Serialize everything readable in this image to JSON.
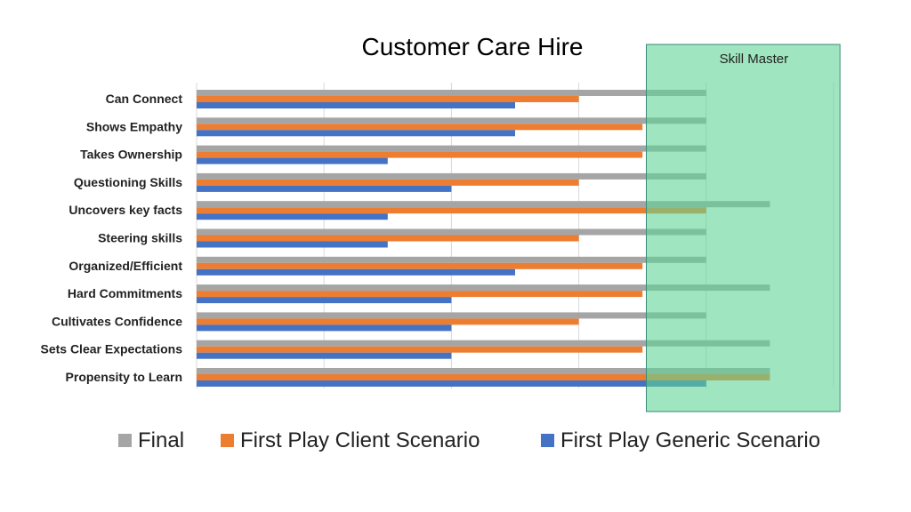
{
  "chart_data": {
    "type": "bar",
    "orientation": "horizontal",
    "title": "Customer Care Hire",
    "xlabel": "",
    "ylabel": "",
    "xlim": [
      0,
      5
    ],
    "grid": true,
    "legend_position": "bottom",
    "categories": [
      "Can Connect",
      "Shows Empathy",
      "Takes Ownership",
      "Questioning Skills",
      "Uncovers key facts",
      "Steering skills",
      "Organized/Efficient",
      "Hard Commitments",
      "Cultivates Confidence",
      "Sets Clear Expectations",
      "Propensity to Learn"
    ],
    "series": [
      {
        "name": "Final",
        "color": "#a5a5a5",
        "values": [
          4,
          4,
          4,
          4,
          4.5,
          4,
          4,
          4.5,
          4,
          4.5,
          4.5
        ]
      },
      {
        "name": "First Play Client Scenario",
        "color": "#ed7d31",
        "values": [
          3,
          3.5,
          3.5,
          3,
          4,
          3,
          3.5,
          3.5,
          3,
          3.5,
          4.5
        ]
      },
      {
        "name": "First Play Generic Scenario",
        "color": "#4472c4",
        "values": [
          2.5,
          2.5,
          1.5,
          2,
          1.5,
          1.5,
          2.5,
          2,
          2,
          2,
          4
        ]
      }
    ],
    "annotation": {
      "label": "Skill Master",
      "color": "#5fd394",
      "range": [
        3.53,
        5.05
      ]
    }
  }
}
